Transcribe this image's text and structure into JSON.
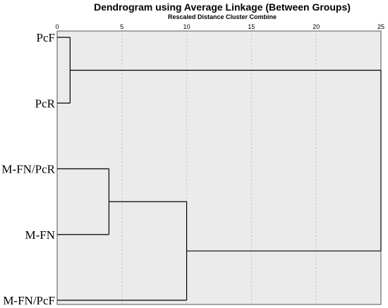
{
  "chart_data": {
    "type": "dendrogram",
    "title": "Dendrogram using Average Linkage (Between Groups)",
    "subtitle": "Rescaled Distance Cluster Combine",
    "x_ticks": [
      0,
      5,
      10,
      15,
      20,
      25
    ],
    "xlim": [
      0,
      25
    ],
    "grid": true,
    "leaves": [
      "PcF",
      "PcR",
      "M-FN/PcR",
      "M-FN",
      "M-FN/PcF"
    ],
    "merges": [
      {
        "members": [
          "PcF",
          "PcR"
        ],
        "distance": 1
      },
      {
        "members": [
          "M-FN/PcR",
          "M-FN"
        ],
        "distance": 4
      },
      {
        "members": [
          "M-FN/PcR",
          "M-FN",
          "M-FN/PcF"
        ],
        "distance": 10
      },
      {
        "members": [
          "PcF",
          "PcR",
          "M-FN/PcR",
          "M-FN",
          "M-FN/PcF"
        ],
        "distance": 25
      }
    ],
    "colors": {
      "background": "#ebebeb",
      "line": "#000000",
      "grid": "#b5b5b5"
    }
  }
}
